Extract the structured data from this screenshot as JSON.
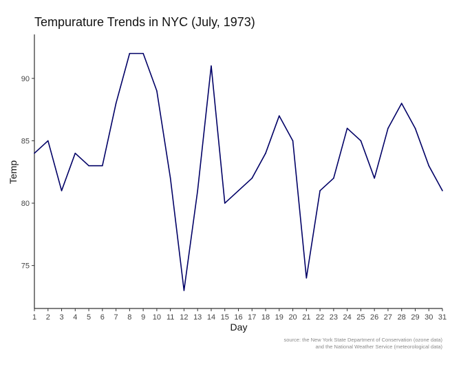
{
  "chart_data": {
    "type": "line",
    "title": "Tempurature Trends in NYC (July, 1973)",
    "xlabel": "Day",
    "ylabel": "Temp",
    "caption": [
      "source: the New York State Department of Conservation (ozone data)",
      "and the National Weather Service (meteorological data)"
    ],
    "x": [
      1,
      2,
      3,
      4,
      5,
      6,
      7,
      8,
      9,
      10,
      11,
      12,
      13,
      14,
      15,
      16,
      17,
      18,
      19,
      20,
      21,
      22,
      23,
      24,
      25,
      26,
      27,
      28,
      29,
      30,
      31
    ],
    "y": [
      84,
      85,
      81,
      84,
      83,
      83,
      88,
      92,
      92,
      89,
      82,
      73,
      81,
      91,
      80,
      81,
      82,
      84,
      87,
      85,
      74,
      81,
      82,
      86,
      85,
      82,
      86,
      88,
      86,
      83,
      81
    ],
    "xlim": [
      1,
      31
    ],
    "ylim": [
      72,
      93
    ],
    "yticks": [
      75,
      80,
      85,
      90
    ],
    "grid": false,
    "line_color": "#000066"
  }
}
